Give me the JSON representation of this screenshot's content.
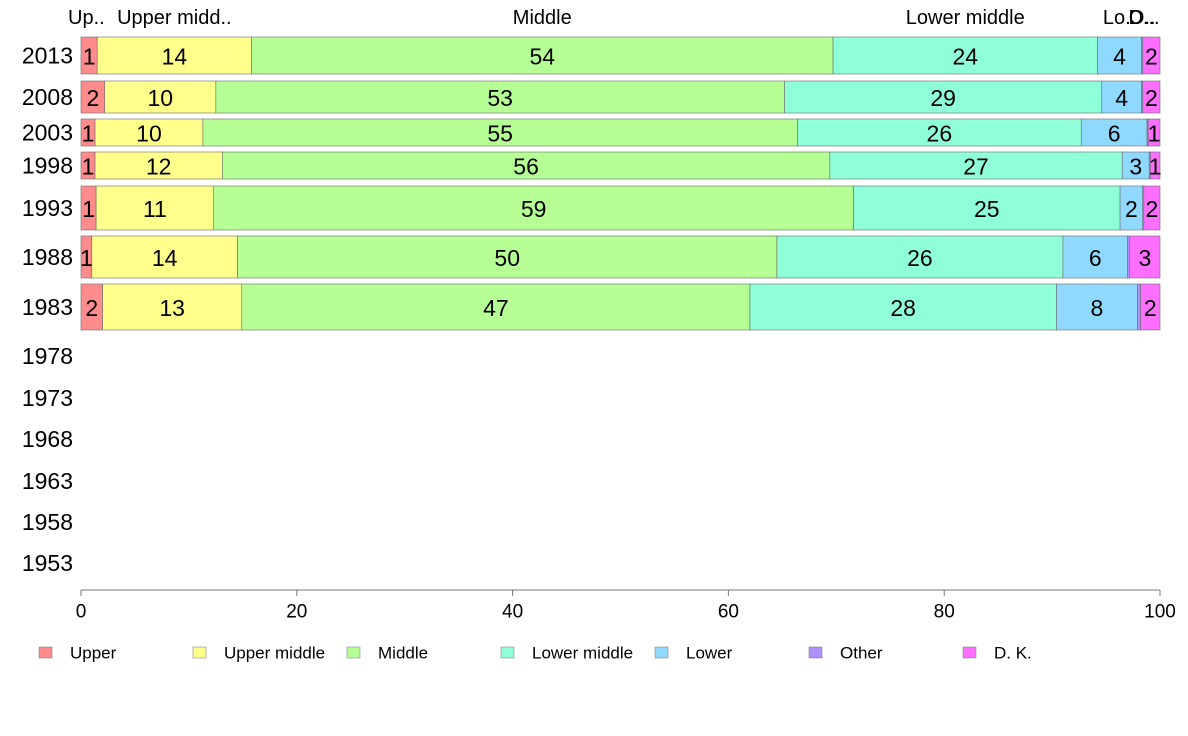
{
  "chart_data": {
    "type": "bar",
    "orientation": "horizontal",
    "stacked": true,
    "categories": [
      "2013",
      "2008",
      "2003",
      "1998",
      "1993",
      "1988",
      "1983",
      "1978",
      "1973",
      "1968",
      "1963",
      "1958",
      "1953"
    ],
    "series": [
      {
        "name": "Upper",
        "color": "#ff8c8c",
        "values": [
          1.5,
          2.2,
          1.3,
          1.3,
          1.4,
          1.0,
          2.0,
          null,
          null,
          null,
          null,
          null,
          null
        ],
        "labels": [
          "1",
          "2",
          "1",
          "1",
          "1",
          "1",
          "2",
          "",
          "",
          "",
          "",
          "",
          ""
        ]
      },
      {
        "name": "Upper middle",
        "color": "#ffff8c",
        "values": [
          14.3,
          10.3,
          10.0,
          11.8,
          10.9,
          13.5,
          12.9,
          null,
          null,
          null,
          null,
          null,
          null
        ],
        "labels": [
          "14",
          "10",
          "10",
          "12",
          "11",
          "14",
          "13",
          "",
          "",
          "",
          "",
          "",
          ""
        ]
      },
      {
        "name": "Middle",
        "color": "#b5ff95",
        "values": [
          53.9,
          52.7,
          55.1,
          56.3,
          59.3,
          50.0,
          47.1,
          null,
          null,
          null,
          null,
          null,
          null
        ],
        "labels": [
          "54",
          "53",
          "55",
          "56",
          "59",
          "50",
          "47",
          "",
          "",
          "",
          "",
          "",
          ""
        ]
      },
      {
        "name": "Lower middle",
        "color": "#8fffd9",
        "values": [
          24.5,
          29.4,
          26.3,
          27.1,
          24.7,
          26.5,
          28.4,
          null,
          null,
          null,
          null,
          null,
          null
        ],
        "labels": [
          "24",
          "29",
          "26",
          "27",
          "25",
          "26",
          "28",
          "",
          "",
          "",
          "",
          "",
          ""
        ]
      },
      {
        "name": "Lower",
        "color": "#8fd9ff",
        "values": [
          4.1,
          3.7,
          6.1,
          2.5,
          2.1,
          6.0,
          7.5,
          null,
          null,
          null,
          null,
          null,
          null
        ],
        "labels": [
          "4",
          "4",
          "6",
          "3",
          "2",
          "6",
          "8",
          "",
          "",
          "",
          "",
          "",
          ""
        ]
      },
      {
        "name": "Other",
        "color": "#b08fff",
        "values": [
          0.1,
          0.1,
          0.1,
          0.1,
          0.1,
          0.2,
          0.3,
          null,
          null,
          null,
          null,
          null,
          null
        ],
        "labels": [
          "",
          "",
          "",
          "",
          "",
          "",
          "",
          "",
          "",
          "",
          "",
          "",
          ""
        ]
      },
      {
        "name": "D. K.",
        "color": "#ff6fff",
        "values": [
          1.6,
          1.6,
          1.1,
          0.9,
          1.5,
          2.8,
          1.8,
          null,
          null,
          null,
          null,
          null,
          null
        ],
        "labels": [
          "2",
          "2",
          "1",
          "1",
          "2",
          "3",
          "2",
          "",
          "",
          "",
          "",
          "",
          ""
        ]
      }
    ],
    "top_labels": [
      "Up..",
      "Upper midd..",
      "Middle",
      "Lower middle",
      "Lo..",
      "O..",
      "D..."
    ],
    "xlim": [
      0,
      100
    ],
    "xticks": [
      "0",
      "20",
      "40",
      "60",
      "80",
      "100"
    ],
    "grid": false,
    "legend_position": "bottom"
  }
}
